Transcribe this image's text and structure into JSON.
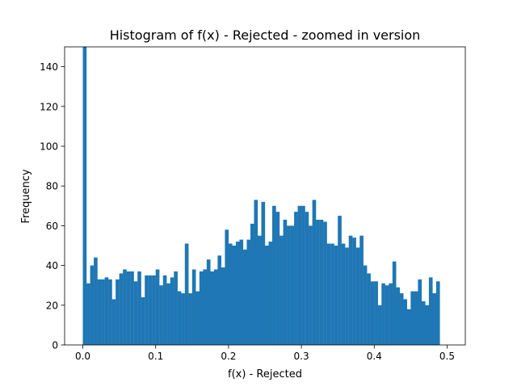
{
  "chart_data": {
    "type": "histogram",
    "title": "Histogram of f(x) - Rejected - zoomed in version",
    "xlabel": "f(x) - Rejected",
    "ylabel": "Frequency",
    "xlim": [
      -0.025,
      0.525
    ],
    "ylim": [
      0,
      150
    ],
    "bin_start": 0.0,
    "bin_width": 0.005,
    "x_ticks": [
      {
        "value": 0.0,
        "label": "0.0"
      },
      {
        "value": 0.1,
        "label": "0.1"
      },
      {
        "value": 0.2,
        "label": "0.2"
      },
      {
        "value": 0.3,
        "label": "0.3"
      },
      {
        "value": 0.4,
        "label": "0.4"
      },
      {
        "value": 0.5,
        "label": "0.5"
      }
    ],
    "y_ticks": [
      {
        "value": 0,
        "label": "0"
      },
      {
        "value": 20,
        "label": "20"
      },
      {
        "value": 40,
        "label": "40"
      },
      {
        "value": 60,
        "label": "60"
      },
      {
        "value": 80,
        "label": "80"
      },
      {
        "value": 100,
        "label": "100"
      },
      {
        "value": 120,
        "label": "120"
      },
      {
        "value": 140,
        "label": "140"
      }
    ],
    "bar_color": "#1f77b4",
    "grid": false,
    "values": [
      150,
      31,
      40,
      44,
      33,
      33,
      34,
      33,
      23,
      33,
      36,
      38,
      37,
      37,
      32,
      37,
      24,
      35,
      35,
      35,
      38,
      30,
      35,
      31,
      34,
      37,
      27,
      26,
      51,
      26,
      38,
      27,
      37,
      38,
      43,
      37,
      38,
      45,
      39,
      58,
      51,
      50,
      52,
      53,
      48,
      53,
      61,
      73,
      55,
      72,
      50,
      52,
      70,
      67,
      55,
      63,
      60,
      60,
      67,
      70,
      70,
      67,
      60,
      73,
      63,
      63,
      62,
      51,
      51,
      50,
      65,
      51,
      49,
      55,
      54,
      49,
      55,
      40,
      36,
      32,
      32,
      20,
      31,
      30,
      31,
      42,
      29,
      26,
      23,
      18,
      27,
      27,
      33,
      22,
      20,
      34,
      26,
      32
    ]
  }
}
